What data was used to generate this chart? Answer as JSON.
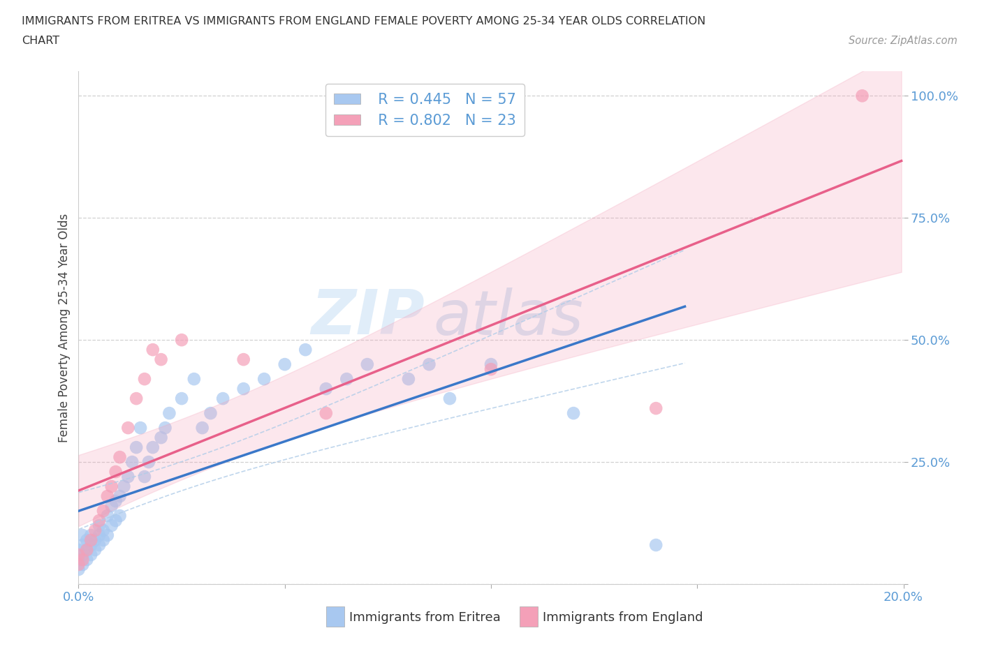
{
  "title_line1": "IMMIGRANTS FROM ERITREA VS IMMIGRANTS FROM ENGLAND FEMALE POVERTY AMONG 25-34 YEAR OLDS CORRELATION",
  "title_line2": "CHART",
  "source_text": "Source: ZipAtlas.com",
  "ylabel": "Female Poverty Among 25-34 Year Olds",
  "watermark_zip": "ZIP",
  "watermark_atlas": "atlas",
  "legend_label1": "Immigrants from Eritrea",
  "legend_label2": "Immigrants from England",
  "R1": 0.445,
  "N1": 57,
  "R2": 0.802,
  "N2": 23,
  "xlim": [
    0.0,
    0.2
  ],
  "ylim": [
    0.0,
    1.05
  ],
  "color_eritrea": "#a8c8f0",
  "color_england": "#f4a0b8",
  "line_color_eritrea": "#3a78c9",
  "line_color_england": "#e8608a",
  "ci_color_eritrea": "#b0cce8",
  "background_color": "#ffffff",
  "grid_color": "#cccccc",
  "tick_color": "#5b9bd5",
  "scatter_eritrea_x": [
    0.0,
    0.0,
    0.0,
    0.001,
    0.001,
    0.001,
    0.001,
    0.002,
    0.002,
    0.002,
    0.003,
    0.003,
    0.003,
    0.004,
    0.004,
    0.005,
    0.005,
    0.005,
    0.006,
    0.006,
    0.007,
    0.007,
    0.008,
    0.008,
    0.009,
    0.009,
    0.01,
    0.01,
    0.011,
    0.012,
    0.013,
    0.014,
    0.015,
    0.016,
    0.017,
    0.018,
    0.02,
    0.021,
    0.022,
    0.025,
    0.028,
    0.03,
    0.032,
    0.035,
    0.04,
    0.045,
    0.05,
    0.055,
    0.06,
    0.065,
    0.07,
    0.08,
    0.085,
    0.09,
    0.1,
    0.12,
    0.14
  ],
  "scatter_eritrea_y": [
    0.03,
    0.05,
    0.07,
    0.04,
    0.06,
    0.08,
    0.1,
    0.05,
    0.07,
    0.09,
    0.06,
    0.08,
    0.1,
    0.07,
    0.09,
    0.08,
    0.1,
    0.12,
    0.09,
    0.11,
    0.1,
    0.14,
    0.12,
    0.16,
    0.13,
    0.17,
    0.14,
    0.18,
    0.2,
    0.22,
    0.25,
    0.28,
    0.32,
    0.22,
    0.25,
    0.28,
    0.3,
    0.32,
    0.35,
    0.38,
    0.42,
    0.32,
    0.35,
    0.38,
    0.4,
    0.42,
    0.45,
    0.48,
    0.4,
    0.42,
    0.45,
    0.42,
    0.45,
    0.38,
    0.45,
    0.35,
    0.08
  ],
  "scatter_england_x": [
    0.0,
    0.0,
    0.001,
    0.002,
    0.003,
    0.004,
    0.005,
    0.006,
    0.007,
    0.008,
    0.009,
    0.01,
    0.012,
    0.014,
    0.016,
    0.018,
    0.02,
    0.025,
    0.04,
    0.06,
    0.1,
    0.14,
    0.19
  ],
  "scatter_england_y": [
    0.04,
    0.06,
    0.05,
    0.07,
    0.09,
    0.11,
    0.13,
    0.15,
    0.18,
    0.2,
    0.23,
    0.26,
    0.32,
    0.38,
    0.42,
    0.48,
    0.46,
    0.5,
    0.46,
    0.35,
    0.44,
    0.36,
    1.0
  ]
}
